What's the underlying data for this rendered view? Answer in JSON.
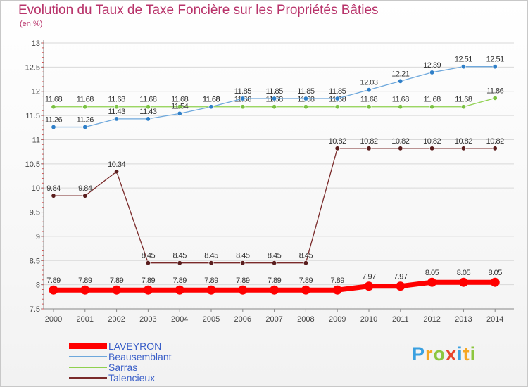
{
  "chart_data": {
    "type": "line",
    "title": "Evolution du Taux de Taxe Foncière sur les Propriétés Bâties",
    "ylabel": "(en %)",
    "xlabel": "",
    "categories": [
      "2000",
      "2001",
      "2002",
      "2003",
      "2004",
      "2005",
      "2006",
      "2007",
      "2008",
      "2009",
      "2010",
      "2011",
      "2012",
      "2013",
      "2014"
    ],
    "ylim": [
      7.5,
      13
    ],
    "yticks": [
      "7.5",
      "8",
      "8.5",
      "9",
      "9.5",
      "10",
      "10.5",
      "11",
      "11.5",
      "12",
      "12.5",
      "13"
    ],
    "series": [
      {
        "name": "LAVEYRON",
        "color": "#ff0000",
        "values": [
          7.89,
          7.89,
          7.89,
          7.89,
          7.89,
          7.89,
          7.89,
          7.89,
          7.89,
          7.89,
          7.97,
          7.97,
          8.05,
          8.05,
          8.05
        ],
        "labels": [
          "7.89",
          "7.89",
          "7.89",
          "7.89",
          "7.89",
          "7.89",
          "7.89",
          "7.89",
          "7.89",
          "7.89",
          "7.97",
          "7.97",
          "8.05",
          "8.05",
          "8.05"
        ]
      },
      {
        "name": "Beausemblant",
        "color": "#6ea8dc",
        "values": [
          11.26,
          11.26,
          11.43,
          11.43,
          11.54,
          11.68,
          11.85,
          11.85,
          11.85,
          11.85,
          12.03,
          12.21,
          12.39,
          12.51,
          12.51
        ],
        "labels": [
          "11.26",
          "11.26",
          "11.43",
          "11.43",
          "11.54",
          "11.68",
          "11.85",
          "11.85",
          "11.85",
          "11.85",
          "12.03",
          "12.21",
          "12.39",
          "12.51",
          "12.51"
        ]
      },
      {
        "name": "Sarras",
        "color": "#8fd14f",
        "values": [
          11.68,
          11.68,
          11.68,
          11.68,
          11.68,
          11.68,
          11.68,
          11.68,
          11.68,
          11.68,
          11.68,
          11.68,
          11.68,
          11.68,
          11.86
        ],
        "labels": [
          "11.68",
          "11.68",
          "11.68",
          "11.68",
          "11.68",
          "11.68",
          "11.68",
          "11.68",
          "11.68",
          "11.68",
          "11.68",
          "11.68",
          "11.68",
          "11.68",
          "11.86"
        ]
      },
      {
        "name": "Talencieux",
        "color": "#7a2a2a",
        "values": [
          9.84,
          9.84,
          10.34,
          8.45,
          8.45,
          8.45,
          8.45,
          8.45,
          8.45,
          10.82,
          10.82,
          10.82,
          10.82,
          10.82,
          10.82
        ],
        "labels": [
          "9.84",
          "9.84",
          "10.34",
          "8.45",
          "8.45",
          "8.45",
          "8.45",
          "8.45",
          "8.45",
          "10.82",
          "10.82",
          "10.82",
          "10.82",
          "10.82",
          "10.82"
        ]
      }
    ]
  },
  "logo": {
    "letters": [
      "P",
      "r",
      "o",
      "x",
      "i",
      "t",
      "i"
    ],
    "colors": [
      "#3aa0e0",
      "#f5a623",
      "#8cc63f",
      "#e8442c",
      "#3aa0e0",
      "#f5a623",
      "#8cc63f"
    ]
  }
}
